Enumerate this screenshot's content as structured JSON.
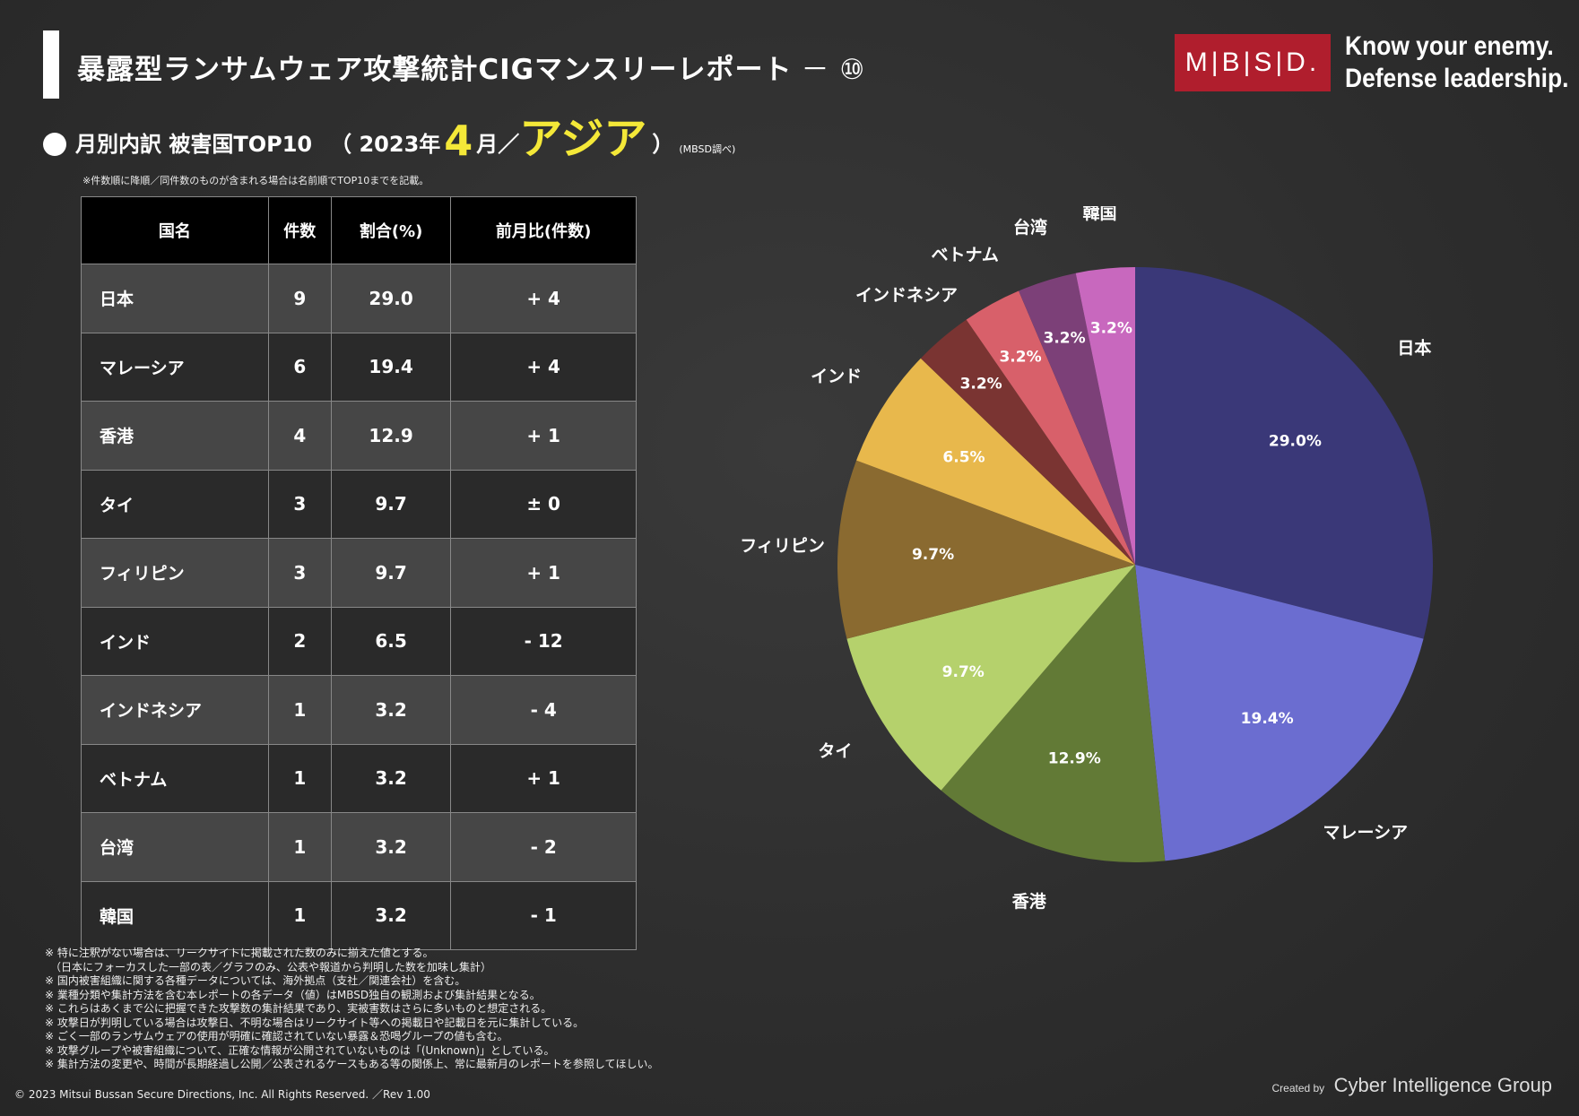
{
  "header": {
    "title": "暴露型ランサムウェア攻撃統計CIGマンスリーレポート",
    "title_suffix": "－ ⑩",
    "logo_text": "M|B|S|D.",
    "tagline_1": "Know your enemy.",
    "tagline_2": "Defense leadership."
  },
  "subtitle": {
    "main": "月別内訳 被害国TOP10",
    "year": "（ 2023年",
    "month": "4",
    "month_unit": "月",
    "separator": "／",
    "region": "アジア",
    "close": "）",
    "note": "(MBSD調べ)"
  },
  "sort_note": "※件数順に降順／同件数のものが含まれる場合は名前順でTOP10までを記載。",
  "table": {
    "headers": [
      "国名",
      "件数",
      "割合(%)",
      "前月比(件数)"
    ],
    "rows": [
      {
        "country": "日本",
        "count": "9",
        "ratio": "29.0",
        "mom": "+ 4"
      },
      {
        "country": "マレーシア",
        "count": "6",
        "ratio": "19.4",
        "mom": "+ 4"
      },
      {
        "country": "香港",
        "count": "4",
        "ratio": "12.9",
        "mom": "+ 1"
      },
      {
        "country": "タイ",
        "count": "3",
        "ratio": "9.7",
        "mom": "± 0"
      },
      {
        "country": "フィリピン",
        "count": "3",
        "ratio": "9.7",
        "mom": "+ 1"
      },
      {
        "country": "インド",
        "count": "2",
        "ratio": "6.5",
        "mom": "- 12"
      },
      {
        "country": "インドネシア",
        "count": "1",
        "ratio": "3.2",
        "mom": "- 4"
      },
      {
        "country": "ベトナム",
        "count": "1",
        "ratio": "3.2",
        "mom": "+ 1"
      },
      {
        "country": "台湾",
        "count": "1",
        "ratio": "3.2",
        "mom": "- 2"
      },
      {
        "country": "韓国",
        "count": "1",
        "ratio": "3.2",
        "mom": "- 1"
      }
    ]
  },
  "chart_data": {
    "type": "pie",
    "title": "",
    "categories": [
      "日本",
      "マレーシア",
      "香港",
      "タイ",
      "フィリピン",
      "インド",
      "インドネシア",
      "ベトナム",
      "台湾",
      "韓国"
    ],
    "values": [
      29.0,
      19.4,
      12.9,
      9.7,
      9.7,
      6.5,
      3.2,
      3.2,
      3.2,
      3.2
    ],
    "labels": [
      "29.0%",
      "19.4%",
      "12.9%",
      "9.7%",
      "9.7%",
      "6.5%",
      "3.2%",
      "3.2%",
      "3.2%",
      "3.2%"
    ],
    "colors": [
      "#3a3878",
      "#6b6dd0",
      "#627a36",
      "#b5d16c",
      "#8a6a30",
      "#e8b84c",
      "#7a3432",
      "#d8606a",
      "#7c4078",
      "#c868be"
    ],
    "start": "12 o'clock, clockwise"
  },
  "footnotes": [
    "※ 特に注釈がない場合は、リークサイトに掲載された数のみに揃えた値とする。",
    "　（日本にフォーカスした一部の表／グラフのみ、公表や報道から判明した数を加味し集計）",
    "※ 国内被害組織に関する各種データについては、海外拠点（支社／関連会社）を含む。",
    "※ 業種分類や集計方法を含む本レポートの各データ（値）はMBSD独自の観測および集計結果となる。",
    "※ これらはあくまで公に把握できた攻撃数の集計結果であり、実被害数はさらに多いものと想定される。",
    "※ 攻撃日が判明している場合は攻撃日、不明な場合はリークサイト等への掲載日や記載日を元に集計している。",
    "※ ごく一部のランサムウェアの使用が明確に確認されていない暴露＆恐喝グループの値も含む。",
    "※ 攻撃グループや被害組織について、正確な情報が公開されていないものは「(Unknown)」としている。",
    "※ 集計方法の変更や、時間が長期経過し公開／公表されるケースもある等の関係上、常に最新月のレポートを参照してほしい。"
  ],
  "footer": {
    "copyright": "© 2023 Mitsui Bussan Secure Directions, Inc.  All Rights Reserved. ／Rev 1.00",
    "created_by": "Created by",
    "group_name": "Cyber Intelligence Group"
  }
}
